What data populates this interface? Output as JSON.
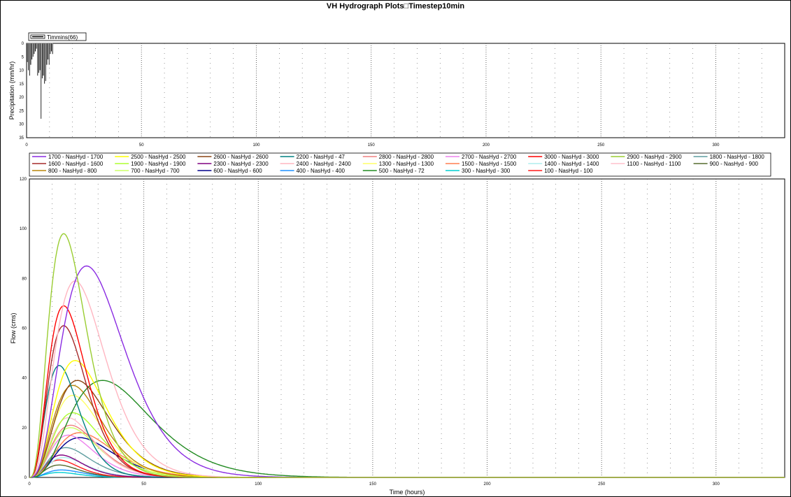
{
  "title": "VH Hydrograph Plots□Timestep10min",
  "chart_data": [
    {
      "type": "bar",
      "ylabel": "Precipitation (mm/hr)",
      "xlabel": "",
      "ylim": [
        0,
        35
      ],
      "y_inverted": true,
      "xlim": [
        0,
        330
      ],
      "xticks": [
        0,
        50,
        100,
        150,
        200,
        250,
        300
      ],
      "yticks": [
        0,
        5,
        10,
        15,
        20,
        25,
        30,
        35
      ],
      "grid": true,
      "legend": "top-left",
      "series": [
        {
          "name": "Timmins(66)",
          "color": "#000000",
          "x": [
            0.5,
            1,
            1.5,
            2,
            2.5,
            3,
            3.5,
            4,
            4.5,
            5,
            5.5,
            6,
            6.5,
            7,
            7.5,
            8,
            8.5,
            9,
            9.5,
            10,
            10.5,
            11,
            11.5
          ],
          "values": [
            7,
            10,
            12,
            8,
            6,
            5,
            4,
            3,
            2,
            12,
            11,
            10,
            28,
            13,
            12,
            15,
            14,
            8,
            6,
            8,
            4,
            3,
            4
          ]
        }
      ]
    },
    {
      "type": "line",
      "xlabel": "Time (hours)",
      "ylabel": "Flow (cms)",
      "xlim": [
        0,
        330
      ],
      "ylim": [
        0,
        120
      ],
      "xticks": [
        0,
        50,
        100,
        150,
        200,
        250,
        300
      ],
      "yticks": [
        0,
        20,
        40,
        60,
        80,
        100,
        120
      ],
      "grid": true,
      "legend": "top",
      "series": [
        {
          "name": "1700 - NasHyd - 1700",
          "color": "#8a2be2",
          "peak": 85,
          "tpeak": 25
        },
        {
          "name": "2500 - NasHyd - 2500",
          "color": "#ffff00",
          "peak": 47,
          "tpeak": 20
        },
        {
          "name": "2600 - NasHyd - 2600",
          "color": "#8b4513",
          "peak": 39,
          "tpeak": 21
        },
        {
          "name": "2200 - NasHyd - 47",
          "color": "#008080",
          "peak": 45,
          "tpeak": 13
        },
        {
          "name": "2800 - NasHyd - 2800",
          "color": "#f08080",
          "peak": 21,
          "tpeak": 18
        },
        {
          "name": "2700 - NasHyd - 2700",
          "color": "#ee82ee",
          "peak": 17,
          "tpeak": 17
        },
        {
          "name": "3000 - NasHyd - 3000",
          "color": "#ff0000",
          "peak": 69,
          "tpeak": 15
        },
        {
          "name": "2900 - NasHyd - 2900",
          "color": "#9acd32",
          "peak": 98,
          "tpeak": 15
        },
        {
          "name": "1800 - NasHyd - 1800",
          "color": "#5f9ea0",
          "peak": 12,
          "tpeak": 16
        },
        {
          "name": "1600 - NasHyd - 1600",
          "color": "#a52a2a",
          "peak": 61,
          "tpeak": 15
        },
        {
          "name": "1900 - NasHyd - 1900",
          "color": "#adff2f",
          "peak": 26,
          "tpeak": 19
        },
        {
          "name": "2300 - NasHyd - 2300",
          "color": "#800080",
          "peak": 9,
          "tpeak": 14
        },
        {
          "name": "2400 - NasHyd - 2400",
          "color": "#ffb6c1",
          "peak": 79,
          "tpeak": 20
        },
        {
          "name": "1300 - NasHyd - 1300",
          "color": "#ffff66",
          "peak": 33,
          "tpeak": 19
        },
        {
          "name": "1500 - NasHyd - 1500",
          "color": "#ff7f50",
          "peak": 18,
          "tpeak": 22
        },
        {
          "name": "1400 - NasHyd - 1400",
          "color": "#afeeee",
          "peak": 8,
          "tpeak": 15
        },
        {
          "name": "1100 - NasHyd - 1100",
          "color": "#ffc0cb",
          "peak": 24,
          "tpeak": 17
        },
        {
          "name": "900 - NasHyd - 900",
          "color": "#556b2f",
          "peak": 5,
          "tpeak": 13
        },
        {
          "name": "800 - NasHyd - 800",
          "color": "#b8860b",
          "peak": 37,
          "tpeak": 19
        },
        {
          "name": "700 - NasHyd - 700",
          "color": "#ccff66",
          "peak": 20,
          "tpeak": 18
        },
        {
          "name": "600 - NasHyd - 600",
          "color": "#00008b",
          "peak": 16,
          "tpeak": 22
        },
        {
          "name": "400 - NasHyd - 400",
          "color": "#1e90ff",
          "peak": 3,
          "tpeak": 14
        },
        {
          "name": "500 - NasHyd - 72",
          "color": "#228b22",
          "peak": 39,
          "tpeak": 32
        },
        {
          "name": "300 - NasHyd - 300",
          "color": "#00ced1",
          "peak": 2,
          "tpeak": 13
        },
        {
          "name": "100 - NasHyd - 100",
          "color": "#ff1a1a",
          "peak": 7,
          "tpeak": 13
        }
      ]
    }
  ]
}
